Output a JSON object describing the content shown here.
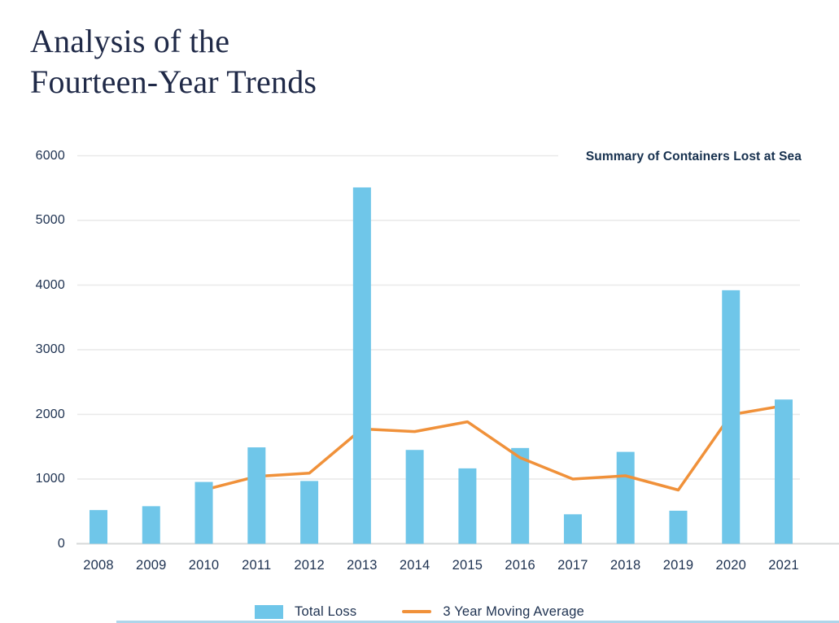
{
  "header": {
    "title_line1": "Analysis of the",
    "title_line2": "Fourteen-Year Trends"
  },
  "chart_data": {
    "type": "bar",
    "title": "Summary of Containers Lost at Sea",
    "categories": [
      "2008",
      "2009",
      "2010",
      "2011",
      "2012",
      "2013",
      "2014",
      "2015",
      "2016",
      "2017",
      "2018",
      "2019",
      "2020",
      "2021"
    ],
    "series": [
      {
        "name": "Total Loss",
        "type": "bar",
        "color": "#6FC6E9",
        "values": [
          520,
          580,
          955,
          1490,
          970,
          5510,
          1450,
          1165,
          1480,
          455,
          1420,
          510,
          3920,
          2230
        ]
      },
      {
        "name": "3 Year Moving Average",
        "type": "line",
        "color": "#F0913A",
        "values": [
          null,
          null,
          830,
          1040,
          1090,
          1775,
          1735,
          1885,
          1330,
          1000,
          1050,
          830,
          1995,
          2135
        ]
      }
    ],
    "ylim": [
      0,
      6000
    ],
    "y_ticks": [
      0,
      1000,
      2000,
      3000,
      4000,
      5000,
      6000
    ],
    "grid": true,
    "legend_position": "bottom"
  },
  "colors": {
    "title_text": "#1f2947",
    "axis_text": "#1d3150",
    "gridline": "#e9e9e9",
    "baseline": "#d6d8d8",
    "bottom_rule": "#aed5ea"
  }
}
